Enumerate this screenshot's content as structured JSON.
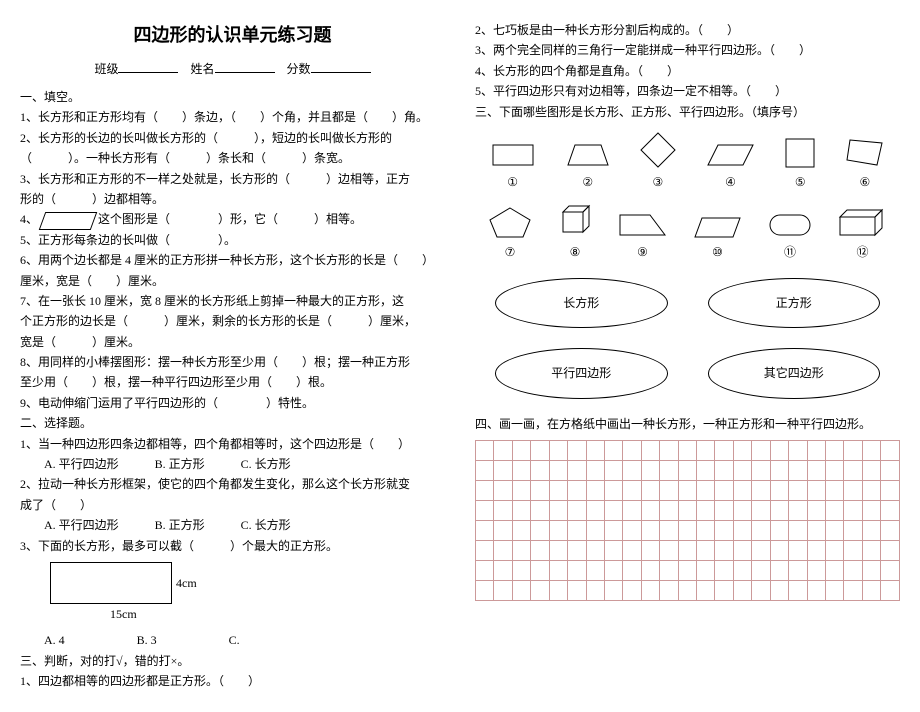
{
  "title": "四边形的认识单元练习题",
  "header": {
    "class_label": "班级",
    "name_label": "姓名",
    "score_label": "分数"
  },
  "sec1_title": "一、填空。",
  "q1_1": "1、长方形和正方形均有（　　）条边，（　　）个角，并且都是（　　）角。",
  "q1_2a": "2、长方形的长边的长叫做长方形的（　　　），短边的长叫做长方形的",
  "q1_2b": "（　　　）。一种长方形有（　　　）条长和（　　　）条宽。",
  "q1_3a": "3、长方形和正方形的不一样之处就是，长方形的（　　　）边相等，正方",
  "q1_3b": "形的（　　　）边都相等。",
  "q1_4a": "4、",
  "q1_4b": "这个图形是（　　　　）形，它（　　　）相等。",
  "q1_5": "5、正方形每条边的长叫做（　　　　）。",
  "q1_6a": "6、用两个边长都是 4 厘米的正方形拼一种长方形，这个长方形的长是（　　）",
  "q1_6b": "厘米，宽是（　　）厘米。",
  "q1_7a": "7、在一张长 10 厘米，宽 8 厘米的长方形纸上剪掉一种最大的正方形，这",
  "q1_7b": "个正方形的边长是（　　　）厘米，剩余的长方形的长是（　　　）厘米，",
  "q1_7c": "宽是（　　　）厘米。",
  "q1_8a": "8、用同样的小棒摆图形：摆一种长方形至少用（　　）根；摆一种正方形",
  "q1_8b": "至少用（　　）根，摆一种平行四边形至少用（　　）根。",
  "q1_9": "9、电动伸缩门运用了平行四边形的（　　　　）特性。",
  "sec2_title": "二、选择题。",
  "q2_1": "1、当一种四边形四条边都相等，四个角都相等时，这个四边形是（　　）",
  "q2_1opts": "　　A. 平行四边形　　　B. 正方形　　　C. 长方形",
  "q2_2a": "2、拉动一种长方形框架，使它的四个角都发生变化，那么这个长方形就变",
  "q2_2b": "成了（　　）",
  "q2_2opts": "　　A. 平行四边形　　　B. 正方形　　　C. 长方形",
  "q2_3": "3、下面的长方形，最多可以截（　　　）个最大的正方形。",
  "rect_w": "15cm",
  "rect_h": "4cm",
  "q2_3opts": "　　A. 4　　　　　　B. 3　　　　　　C.",
  "sec3_title": "三、判断，对的打√，错的打×。",
  "q3_1": "1、四边都相等的四边形都是正方形。（　　）",
  "q3_2": "2、七巧板是由一种长方形分割后构成的。（　　）",
  "q3_3": "3、两个完全同样的三角行一定能拼成一种平行四边形。（　　）",
  "q3_4": "4、长方形的四个角都是直角。（　　）",
  "q3_5": "5、平行四边形只有对边相等，四条边一定不相等。（　　）",
  "sec3b_title": "三、下面哪些图形是长方形、正方形、平行四边形。（填序号）",
  "circled": [
    "①",
    "②",
    "③",
    "④",
    "⑤",
    "⑥",
    "⑦",
    "⑧",
    "⑨",
    "⑩",
    "⑪",
    "⑫"
  ],
  "oval1": "长方形",
  "oval2": "正方形",
  "oval3": "平行四边形",
  "oval4": "其它四边形",
  "sec4_title": "四、画一画，在方格纸中画出一种长方形，一种正方形和一种平行四边形。",
  "grid": {
    "rows": 8,
    "cols": 23,
    "border_color": "#c99"
  }
}
